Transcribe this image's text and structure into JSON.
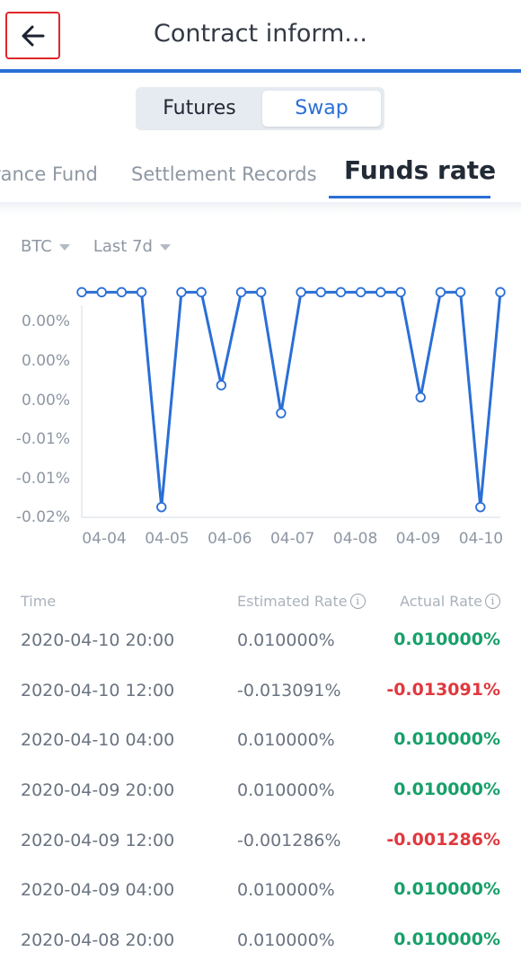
{
  "header": {
    "title": "Contract inform...",
    "back_icon": "arrow-left-icon",
    "accent": "#2a6fd6",
    "highlight_border": "#e0262b"
  },
  "segment": {
    "options": [
      "Futures",
      "Swap"
    ],
    "selected": "Swap"
  },
  "tabs": {
    "items": [
      "rance Fund",
      "Settlement Records",
      "Funds rate"
    ],
    "active": "Funds rate"
  },
  "filters": {
    "coin": "BTC",
    "period": "Last 7d",
    "caret_icon": "caret-down-icon"
  },
  "chart_data": {
    "type": "line",
    "title": "",
    "xlabel": "",
    "ylabel": "",
    "y_tick_labels": [
      "0.00%",
      "0.00%",
      "0.00%",
      "-0.01%",
      "-0.01%",
      "-0.02%"
    ],
    "x_tick_labels": [
      "04-04",
      "04-05",
      "04-06",
      "04-07",
      "04-08",
      "04-09",
      "04-10"
    ],
    "ylim": [
      -0.014,
      0.011
    ],
    "grid": false,
    "color": "#2a6fd6",
    "series": [
      {
        "values": [
          0.01,
          0.01,
          0.01,
          0.01,
          -0.0131,
          0.01,
          0.01,
          0.0,
          0.01,
          0.01,
          -0.003,
          0.01,
          0.01,
          0.01,
          0.01,
          0.01,
          0.01,
          -0.0013,
          0.01,
          0.01,
          -0.0131,
          0.01
        ]
      }
    ]
  },
  "table": {
    "columns": [
      "Time",
      "Estimated Rate",
      "Actual Rate"
    ],
    "info_icon": "info-circle-icon",
    "positive_color": "#17a06a",
    "negative_color": "#e0383e",
    "rows": [
      {
        "time": "2020-04-10 20:00",
        "estimated": "0.010000%",
        "actual": "0.010000%",
        "sign": "positive"
      },
      {
        "time": "2020-04-10 12:00",
        "estimated": "-0.013091%",
        "actual": "-0.013091%",
        "sign": "negative"
      },
      {
        "time": "2020-04-10 04:00",
        "estimated": "0.010000%",
        "actual": "0.010000%",
        "sign": "positive"
      },
      {
        "time": "2020-04-09 20:00",
        "estimated": "0.010000%",
        "actual": "0.010000%",
        "sign": "positive"
      },
      {
        "time": "2020-04-09 12:00",
        "estimated": "-0.001286%",
        "actual": "-0.001286%",
        "sign": "negative"
      },
      {
        "time": "2020-04-09 04:00",
        "estimated": "0.010000%",
        "actual": "0.010000%",
        "sign": "positive"
      },
      {
        "time": "2020-04-08 20:00",
        "estimated": "0.010000%",
        "actual": "0.010000%",
        "sign": "positive"
      }
    ]
  }
}
